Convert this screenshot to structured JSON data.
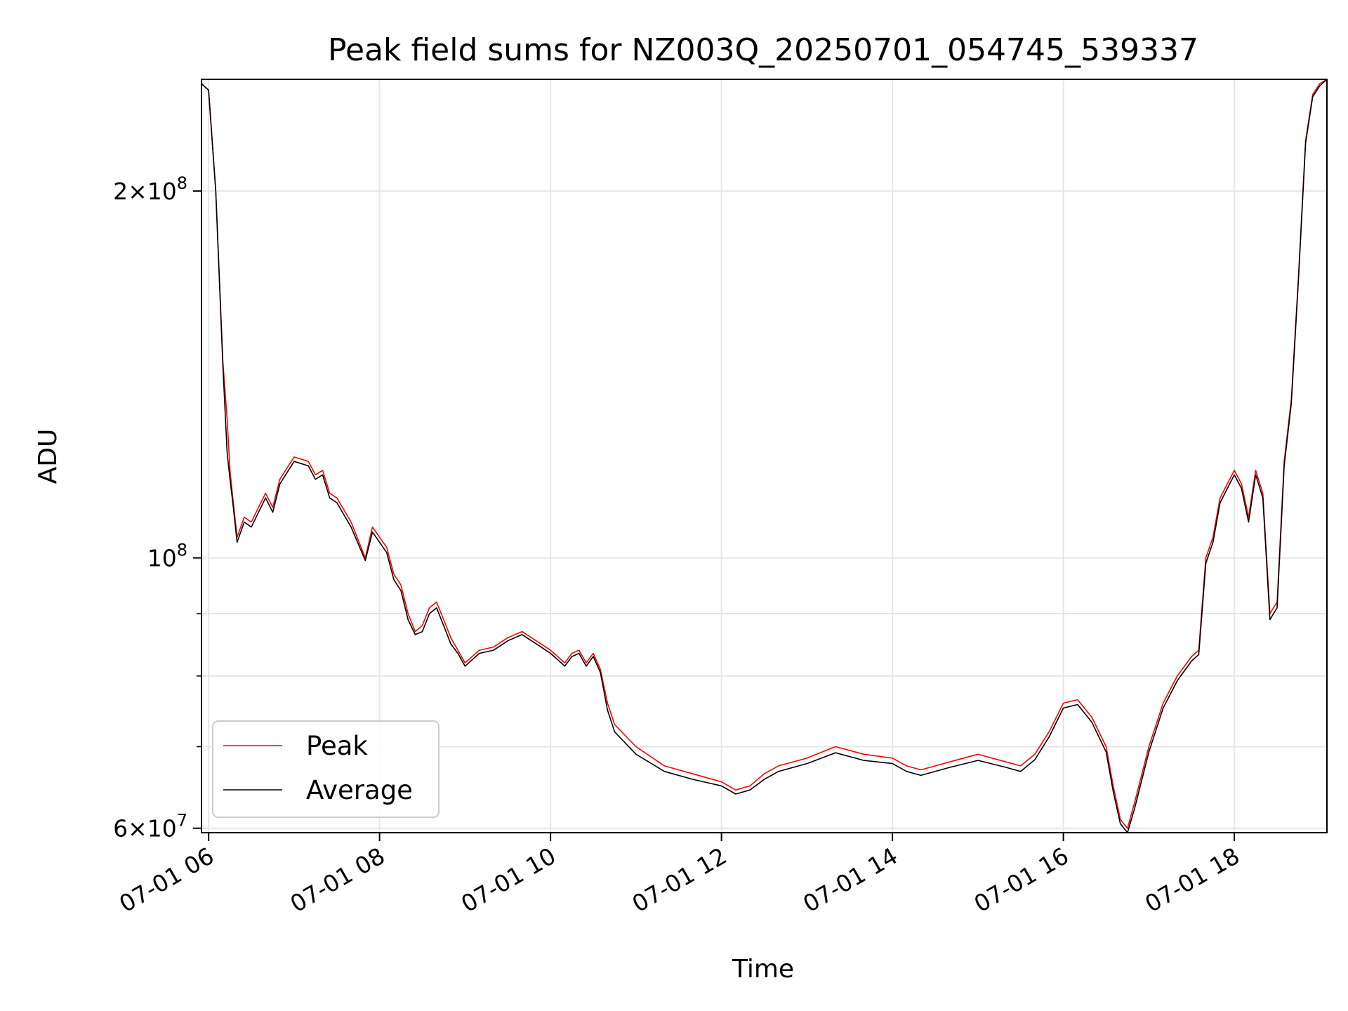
{
  "chart_data": {
    "type": "line",
    "title": "Peak field sums for NZ003Q_20250701_054745_539337",
    "xlabel": "Time",
    "ylabel": "ADU",
    "y_scale": "log",
    "ylim": [
      59500000,
      247000000
    ],
    "xlim": [
      "2025-07-01 05:55",
      "2025-07-01 19:05"
    ],
    "grid": true,
    "legend_position": "lower-left",
    "x_tick_labels": [
      "07-01 06",
      "07-01 08",
      "07-01 10",
      "07-01 12",
      "07-01 14",
      "07-01 16",
      "07-01 18"
    ],
    "x_ticks": [
      "2025-07-01 06:00",
      "2025-07-01 08:00",
      "2025-07-01 10:00",
      "2025-07-01 12:00",
      "2025-07-01 14:00",
      "2025-07-01 16:00",
      "2025-07-01 18:00"
    ],
    "y_major_ticks": [
      {
        "value": 60000000,
        "mantissa": "6",
        "exponent": "7"
      },
      {
        "value": 100000000,
        "mantissa": "",
        "exponent": "8"
      },
      {
        "value": 200000000,
        "mantissa": "2",
        "exponent": "8"
      }
    ],
    "y_minor_ticks": [
      70000000,
      80000000,
      90000000
    ],
    "series": [
      {
        "name": "Peak",
        "color": "#ff0000",
        "x": [
          "05:55",
          "06:00",
          "06:05",
          "06:10",
          "06:13",
          "06:15",
          "06:17",
          "06:20",
          "06:25",
          "06:30",
          "06:35",
          "06:40",
          "06:45",
          "06:50",
          "07:00",
          "07:10",
          "07:15",
          "07:20",
          "07:25",
          "07:30",
          "07:40",
          "07:50",
          "07:55",
          "08:00",
          "08:05",
          "08:10",
          "08:15",
          "08:20",
          "08:25",
          "08:30",
          "08:35",
          "08:40",
          "08:45",
          "08:50",
          "08:55",
          "09:00",
          "09:10",
          "09:20",
          "09:30",
          "09:40",
          "09:50",
          "10:00",
          "10:05",
          "10:10",
          "10:15",
          "10:20",
          "10:25",
          "10:30",
          "10:35",
          "10:40",
          "10:45",
          "11:00",
          "11:20",
          "11:40",
          "12:00",
          "12:10",
          "12:20",
          "12:30",
          "12:40",
          "13:00",
          "13:20",
          "13:40",
          "14:00",
          "14:10",
          "14:20",
          "14:40",
          "15:00",
          "15:20",
          "15:30",
          "15:40",
          "15:50",
          "16:00",
          "16:10",
          "16:20",
          "16:30",
          "16:35",
          "16:40",
          "16:45",
          "16:50",
          "17:00",
          "17:10",
          "17:20",
          "17:30",
          "17:35",
          "17:40",
          "17:45",
          "17:50",
          "18:00",
          "18:05",
          "18:10",
          "18:15",
          "18:20",
          "18:25",
          "18:30",
          "18:35",
          "18:40",
          "18:45",
          "18:50",
          "18:55",
          "19:00",
          "19:05"
        ],
        "y": [
          245000000,
          242000000,
          200000000,
          145000000,
          130000000,
          118000000,
          112000000,
          104000000,
          108000000,
          107000000,
          110000000,
          113000000,
          110000000,
          116000000,
          121000000,
          120000000,
          117000000,
          118000000,
          113000000,
          112000000,
          107000000,
          100000000,
          106000000,
          104000000,
          102000000,
          97000000,
          95000000,
          90000000,
          87000000,
          88000000,
          91000000,
          92000000,
          89000000,
          86000000,
          84000000,
          82000000,
          84000000,
          84500000,
          86000000,
          87000000,
          85500000,
          84000000,
          83000000,
          82000000,
          83500000,
          84000000,
          82000000,
          83500000,
          81000000,
          76000000,
          73000000,
          70000000,
          67500000,
          66500000,
          65500000,
          64500000,
          65000000,
          66500000,
          67500000,
          68500000,
          70000000,
          69000000,
          68500000,
          67500000,
          67000000,
          68000000,
          69000000,
          68000000,
          67500000,
          69000000,
          72000000,
          76000000,
          76500000,
          74000000,
          70000000,
          65000000,
          61000000,
          60000000,
          63000000,
          70000000,
          76000000,
          80000000,
          83000000,
          84000000,
          100000000,
          104000000,
          112000000,
          118000000,
          115000000,
          108000000,
          118000000,
          113000000,
          90000000,
          92000000,
          120000000,
          135000000,
          170000000,
          220000000,
          240000000,
          245000000,
          247000000
        ]
      },
      {
        "name": "Average",
        "color": "#000000",
        "x": [
          "05:55",
          "06:00",
          "06:05",
          "06:10",
          "06:13",
          "06:15",
          "06:17",
          "06:20",
          "06:25",
          "06:30",
          "06:35",
          "06:40",
          "06:45",
          "06:50",
          "07:00",
          "07:10",
          "07:15",
          "07:20",
          "07:25",
          "07:30",
          "07:40",
          "07:50",
          "07:55",
          "08:00",
          "08:05",
          "08:10",
          "08:15",
          "08:20",
          "08:25",
          "08:30",
          "08:35",
          "08:40",
          "08:45",
          "08:50",
          "08:55",
          "09:00",
          "09:10",
          "09:20",
          "09:30",
          "09:40",
          "09:50",
          "10:00",
          "10:05",
          "10:10",
          "10:15",
          "10:20",
          "10:25",
          "10:30",
          "10:35",
          "10:40",
          "10:45",
          "11:00",
          "11:20",
          "11:40",
          "12:00",
          "12:10",
          "12:20",
          "12:30",
          "12:40",
          "13:00",
          "13:20",
          "13:40",
          "14:00",
          "14:10",
          "14:20",
          "14:40",
          "15:00",
          "15:20",
          "15:30",
          "15:40",
          "15:50",
          "16:00",
          "16:10",
          "16:20",
          "16:30",
          "16:35",
          "16:40",
          "16:45",
          "16:50",
          "17:00",
          "17:10",
          "17:20",
          "17:30",
          "17:35",
          "17:40",
          "17:45",
          "17:50",
          "18:00",
          "18:05",
          "18:10",
          "18:15",
          "18:20",
          "18:25",
          "18:30",
          "18:35",
          "18:40",
          "18:45",
          "18:50",
          "18:55",
          "19:00",
          "19:05"
        ],
        "y": [
          245000000,
          242000000,
          200000000,
          144000000,
          122000000,
          116000000,
          111000000,
          103000000,
          107000000,
          106000000,
          109000000,
          112000000,
          109000000,
          115000000,
          120000000,
          119000000,
          116000000,
          117000000,
          112000000,
          111000000,
          106000000,
          99500000,
          105000000,
          103000000,
          101000000,
          96000000,
          94000000,
          89000000,
          86500000,
          87000000,
          90000000,
          91000000,
          88000000,
          85000000,
          83500000,
          81500000,
          83500000,
          84000000,
          85500000,
          86500000,
          85000000,
          83500000,
          82500000,
          81500000,
          83000000,
          83500000,
          81500000,
          83000000,
          80500000,
          75000000,
          72000000,
          69000000,
          66800000,
          65800000,
          65000000,
          64000000,
          64500000,
          65800000,
          66800000,
          67800000,
          69200000,
          68200000,
          67800000,
          66800000,
          66300000,
          67300000,
          68200000,
          67300000,
          66800000,
          68300000,
          71300000,
          75300000,
          75800000,
          73300000,
          69300000,
          64300000,
          60500000,
          59500000,
          62300000,
          69300000,
          75300000,
          79300000,
          82300000,
          83300000,
          99000000,
          103000000,
          111000000,
          117000000,
          114000000,
          107000000,
          117000000,
          112000000,
          89000000,
          91000000,
          119000000,
          134000000,
          169000000,
          219000000,
          239000000,
          244000000,
          247000000
        ]
      }
    ]
  }
}
